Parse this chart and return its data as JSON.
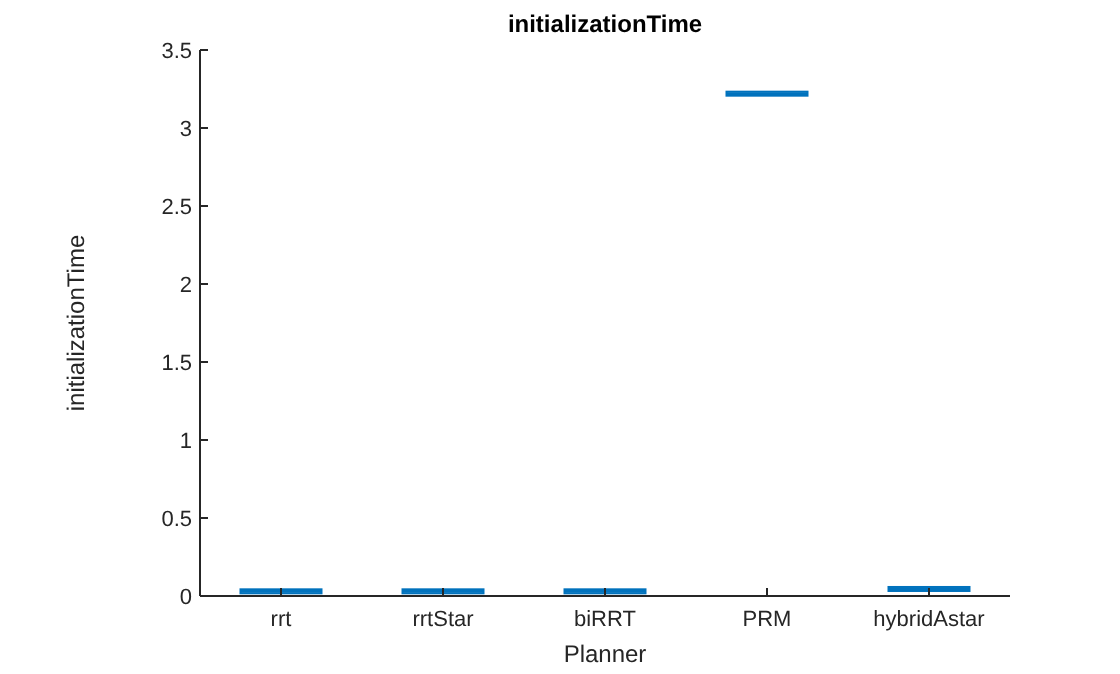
{
  "chart_data": {
    "type": "box",
    "title": "initializationTime",
    "xlabel": "Planner",
    "ylabel": "initializationTime",
    "categories": [
      "rrt",
      "rrtStar",
      "biRRT",
      "PRM",
      "hybridAstar"
    ],
    "boxes": [
      {
        "low": 0.03,
        "q1": 0.03,
        "median": 0.03,
        "q3": 0.03,
        "high": 0.03
      },
      {
        "low": 0.03,
        "q1": 0.03,
        "median": 0.03,
        "q3": 0.03,
        "high": 0.03
      },
      {
        "low": 0.03,
        "q1": 0.03,
        "median": 0.03,
        "q3": 0.03,
        "high": 0.03
      },
      {
        "low": 3.22,
        "q1": 3.22,
        "median": 3.22,
        "q3": 3.22,
        "high": 3.22
      },
      {
        "low": 0.045,
        "q1": 0.045,
        "median": 0.045,
        "q3": 0.045,
        "high": 0.045
      }
    ],
    "color": "#0072bd",
    "ylim": [
      0,
      3.5
    ],
    "yticks": [
      0,
      0.5,
      1,
      1.5,
      2,
      2.5,
      3,
      3.5
    ],
    "grid": false
  }
}
